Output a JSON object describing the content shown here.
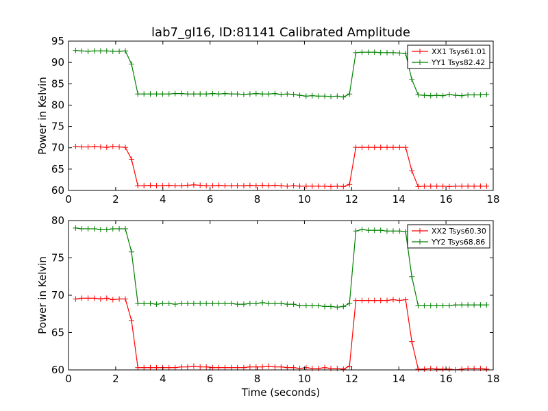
{
  "figure": {
    "title": "lab7_gl16, ID:81141 Calibrated Amplitude"
  },
  "chart_data": [
    {
      "type": "line",
      "title": "lab7_gl16, ID:81141 Calibrated Amplitude",
      "xlabel": "",
      "ylabel": "Power in Kelvin",
      "xlim": [
        0,
        18
      ],
      "ylim": [
        60,
        95
      ],
      "xticks": [
        0,
        2,
        4,
        6,
        8,
        10,
        12,
        14,
        16,
        18
      ],
      "yticks": [
        60,
        65,
        70,
        75,
        80,
        85,
        90,
        95
      ],
      "grid": false,
      "legend_position": "top-right",
      "x": [
        0.3,
        0.56,
        0.83,
        1.09,
        1.36,
        1.62,
        1.88,
        2.15,
        2.41,
        2.67,
        2.94,
        3.2,
        3.47,
        3.73,
        3.99,
        4.26,
        4.52,
        4.79,
        5.05,
        5.31,
        5.58,
        5.84,
        6.11,
        6.37,
        6.63,
        6.9,
        7.16,
        7.43,
        7.69,
        7.95,
        8.22,
        8.48,
        8.75,
        9.01,
        9.27,
        9.54,
        9.8,
        10.07,
        10.33,
        10.59,
        10.86,
        11.12,
        11.39,
        11.65,
        11.91,
        12.18,
        12.44,
        12.71,
        12.97,
        13.23,
        13.5,
        13.76,
        14.03,
        14.29,
        14.55,
        14.82,
        15.08,
        15.35,
        15.61,
        15.87,
        16.14,
        16.4,
        16.67,
        16.93,
        17.19,
        17.46,
        17.72
      ],
      "series": [
        {
          "name": "XX1 Tsys61.01",
          "color": "#ff0000",
          "values": [
            70.3,
            70.2,
            70.2,
            70.3,
            70.2,
            70.1,
            70.3,
            70.2,
            70.1,
            67.3,
            61.1,
            61.1,
            61.2,
            61.1,
            61.1,
            61.2,
            61.1,
            61.1,
            61.2,
            61.3,
            61.2,
            61.1,
            61.1,
            61.2,
            61.1,
            61.1,
            61.1,
            61.1,
            61.2,
            61.1,
            61.2,
            61.1,
            61.2,
            61.1,
            61.0,
            61.1,
            61.0,
            61.0,
            61.0,
            61.0,
            61.0,
            60.9,
            61.0,
            60.9,
            61.4,
            70.1,
            70.1,
            70.1,
            70.1,
            70.1,
            70.1,
            70.1,
            70.1,
            70.1,
            64.6,
            60.9,
            61.0,
            61.0,
            61.0,
            61.0,
            60.9,
            61.0,
            61.0,
            61.0,
            61.0,
            61.0,
            61.0
          ]
        },
        {
          "name": "YY1 Tsys82.42",
          "color": "#008000",
          "values": [
            92.8,
            92.7,
            92.6,
            92.7,
            92.7,
            92.7,
            92.6,
            92.6,
            92.7,
            89.6,
            82.6,
            82.6,
            82.6,
            82.6,
            82.6,
            82.6,
            82.7,
            82.7,
            82.6,
            82.6,
            82.6,
            82.6,
            82.7,
            82.6,
            82.7,
            82.6,
            82.6,
            82.5,
            82.6,
            82.7,
            82.6,
            82.6,
            82.7,
            82.5,
            82.6,
            82.5,
            82.3,
            82.1,
            82.2,
            82.1,
            82.1,
            82.0,
            82.1,
            81.9,
            82.6,
            92.3,
            92.4,
            92.4,
            92.4,
            92.3,
            92.3,
            92.3,
            92.2,
            92.1,
            86.0,
            82.4,
            82.3,
            82.2,
            82.3,
            82.2,
            82.5,
            82.3,
            82.2,
            82.4,
            82.4,
            82.4,
            82.5
          ]
        }
      ]
    },
    {
      "type": "line",
      "title": "",
      "xlabel": "Time (seconds)",
      "ylabel": "Power in Kelvin",
      "xlim": [
        0,
        18
      ],
      "ylim": [
        60,
        80
      ],
      "xticks": [
        0,
        2,
        4,
        6,
        8,
        10,
        12,
        14,
        16,
        18
      ],
      "yticks": [
        60,
        65,
        70,
        75,
        80
      ],
      "grid": false,
      "legend_position": "top-right",
      "x": [
        0.3,
        0.56,
        0.83,
        1.09,
        1.36,
        1.62,
        1.88,
        2.15,
        2.41,
        2.67,
        2.94,
        3.2,
        3.47,
        3.73,
        3.99,
        4.26,
        4.52,
        4.79,
        5.05,
        5.31,
        5.58,
        5.84,
        6.11,
        6.37,
        6.63,
        6.9,
        7.16,
        7.43,
        7.69,
        7.95,
        8.22,
        8.48,
        8.75,
        9.01,
        9.27,
        9.54,
        9.8,
        10.07,
        10.33,
        10.59,
        10.86,
        11.12,
        11.39,
        11.65,
        11.91,
        12.18,
        12.44,
        12.71,
        12.97,
        13.23,
        13.5,
        13.76,
        14.03,
        14.29,
        14.55,
        14.82,
        15.08,
        15.35,
        15.61,
        15.87,
        16.14,
        16.4,
        16.67,
        16.93,
        17.19,
        17.46,
        17.72
      ],
      "series": [
        {
          "name": "XX2 Tsys60.30",
          "color": "#ff0000",
          "values": [
            69.5,
            69.6,
            69.6,
            69.6,
            69.5,
            69.6,
            69.4,
            69.5,
            69.5,
            66.6,
            60.3,
            60.3,
            60.3,
            60.3,
            60.3,
            60.3,
            60.3,
            60.4,
            60.4,
            60.5,
            60.4,
            60.4,
            60.3,
            60.3,
            60.3,
            60.3,
            60.3,
            60.3,
            60.4,
            60.4,
            60.4,
            60.5,
            60.4,
            60.4,
            60.3,
            60.3,
            60.2,
            60.3,
            60.2,
            60.2,
            60.3,
            60.2,
            60.2,
            60.1,
            60.5,
            69.3,
            69.3,
            69.3,
            69.3,
            69.3,
            69.3,
            69.4,
            69.3,
            69.4,
            63.8,
            60.1,
            60.1,
            60.2,
            60.1,
            60.1,
            60.1,
            60.0,
            60.1,
            60.2,
            60.2,
            60.2,
            60.1
          ]
        },
        {
          "name": "YY2 Tsys68.86",
          "color": "#008000",
          "values": [
            79.0,
            78.9,
            78.9,
            78.9,
            78.8,
            78.8,
            78.9,
            78.9,
            78.9,
            75.8,
            68.9,
            68.9,
            68.9,
            68.8,
            68.9,
            68.9,
            68.8,
            68.9,
            68.9,
            68.9,
            68.9,
            68.9,
            68.9,
            68.9,
            68.9,
            68.9,
            68.8,
            68.8,
            68.9,
            68.9,
            69.0,
            68.9,
            68.9,
            68.9,
            68.8,
            68.8,
            68.6,
            68.6,
            68.6,
            68.6,
            68.5,
            68.5,
            68.4,
            68.5,
            68.9,
            78.6,
            78.8,
            78.7,
            78.7,
            78.7,
            78.6,
            78.6,
            78.6,
            78.5,
            72.5,
            68.6,
            68.6,
            68.6,
            68.6,
            68.6,
            68.6,
            68.7,
            68.7,
            68.7,
            68.7,
            68.7,
            68.7
          ]
        }
      ]
    }
  ]
}
